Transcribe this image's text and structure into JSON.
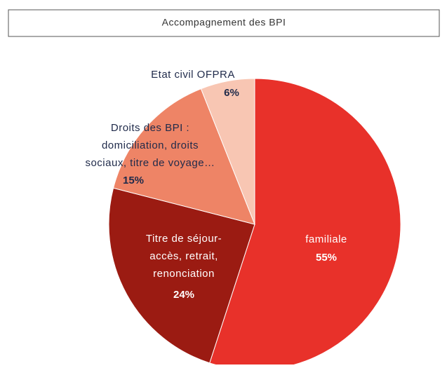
{
  "chart_data": {
    "type": "pie",
    "title": "Accompagnement des BPI",
    "categories": [
      [
        "familiale"
      ],
      [
        "Titre de séjour-",
        "accès, retrait,",
        "renonciation"
      ],
      [
        "Droits des BPI :",
        "domiciliation, droits",
        "sociaux, titre de voyage…"
      ],
      [
        "Etat civil OFPRA"
      ]
    ],
    "values": [
      55,
      24,
      15,
      6
    ],
    "value_labels": [
      "55%",
      "24%",
      "15%",
      "6%"
    ],
    "colors": [
      "#e8312a",
      "#9b1b12",
      "#ee8466",
      "#f8c6b3"
    ]
  }
}
